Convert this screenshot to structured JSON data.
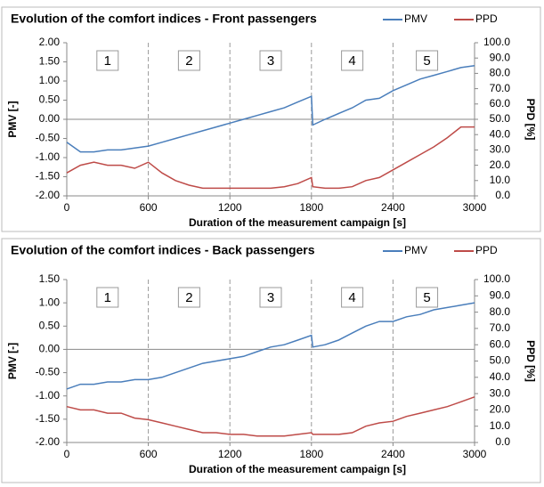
{
  "chart_data": [
    {
      "type": "line",
      "title": "Evolution of the comfort indices - Front passengers",
      "xlabel": "Duration of the measurement campaign  [s]",
      "ylabel": "PMV [-]",
      "y2label": "PPD [%]",
      "x": [
        0,
        100,
        200,
        300,
        400,
        500,
        600,
        700,
        800,
        900,
        1000,
        1100,
        1200,
        1300,
        1400,
        1500,
        1600,
        1700,
        1800,
        1810,
        1900,
        2000,
        2100,
        2200,
        2300,
        2400,
        2500,
        2600,
        2700,
        2800,
        2900,
        3000
      ],
      "series": [
        {
          "name": "PMV",
          "color": "#4a7ebb",
          "values": [
            -0.6,
            -0.85,
            -0.85,
            -0.8,
            -0.8,
            -0.75,
            -0.7,
            -0.6,
            -0.5,
            -0.4,
            -0.3,
            -0.2,
            -0.1,
            0.0,
            0.1,
            0.2,
            0.3,
            0.45,
            0.6,
            -0.15,
            0.0,
            0.15,
            0.3,
            0.5,
            0.55,
            0.75,
            0.9,
            1.05,
            1.15,
            1.25,
            1.35,
            1.4
          ]
        },
        {
          "name": "PPD",
          "color": "#be4b48",
          "axis": "y2",
          "values": [
            15,
            20,
            22,
            20,
            20,
            18,
            22,
            15,
            10,
            7,
            5,
            5,
            5,
            5,
            5,
            5,
            6,
            8,
            12,
            6,
            5,
            5,
            6,
            10,
            12,
            17,
            22,
            27,
            32,
            38,
            45,
            45
          ]
        }
      ],
      "xlim": [
        0,
        3000
      ],
      "xticks": [
        0,
        600,
        1200,
        1800,
        2400,
        3000
      ],
      "ylim": [
        -2,
        2
      ],
      "yticks": [
        {
          "value": 2,
          "label": "2.00"
        },
        {
          "value": 1.5,
          "label": "1.50"
        },
        {
          "value": 1,
          "label": "1.00"
        },
        {
          "value": 0.5,
          "label": "0.50"
        },
        {
          "value": 0,
          "label": "0.00"
        },
        {
          "value": -0.5,
          "label": "-0.50"
        },
        {
          "value": -1,
          "label": "-1.00"
        },
        {
          "value": -1.5,
          "label": "-1.50"
        },
        {
          "value": -2,
          "label": "-2.00"
        }
      ],
      "y2lim": [
        0,
        100
      ],
      "y2ticks": [
        {
          "value": 100,
          "label": "100.0"
        },
        {
          "value": 90,
          "label": "90.0"
        },
        {
          "value": 80,
          "label": "80.0"
        },
        {
          "value": 70,
          "label": "70.0"
        },
        {
          "value": 60,
          "label": "60.0"
        },
        {
          "value": 50,
          "label": "50.0"
        },
        {
          "value": 40,
          "label": "40.0"
        },
        {
          "value": 30,
          "label": "30.0"
        },
        {
          "value": 20,
          "label": "20.0"
        },
        {
          "value": 10,
          "label": "10.0"
        },
        {
          "value": 0,
          "label": "0.0"
        }
      ],
      "phase_lines": [
        600,
        1200,
        1800,
        2400
      ],
      "annotations": [
        {
          "text": "1",
          "x": 300
        },
        {
          "text": "2",
          "x": 900
        },
        {
          "text": "3",
          "x": 1500
        },
        {
          "text": "4",
          "x": 2100
        },
        {
          "text": "5",
          "x": 2650
        }
      ]
    },
    {
      "type": "line",
      "title": "Evolution of the comfort indices - Back passengers",
      "xlabel": "Duration of the measurement campaign  [s]",
      "ylabel": "PMV [-]",
      "y2label": "PPD [%]",
      "x": [
        0,
        100,
        200,
        300,
        400,
        500,
        600,
        700,
        800,
        900,
        1000,
        1100,
        1200,
        1300,
        1400,
        1500,
        1600,
        1700,
        1800,
        1810,
        1900,
        2000,
        2100,
        2200,
        2300,
        2400,
        2500,
        2600,
        2700,
        2800,
        2900,
        3000
      ],
      "series": [
        {
          "name": "PMV",
          "color": "#4a7ebb",
          "values": [
            -0.85,
            -0.75,
            -0.75,
            -0.7,
            -0.7,
            -0.65,
            -0.65,
            -0.6,
            -0.5,
            -0.4,
            -0.3,
            -0.25,
            -0.2,
            -0.15,
            -0.05,
            0.05,
            0.1,
            0.2,
            0.3,
            0.05,
            0.1,
            0.2,
            0.35,
            0.5,
            0.6,
            0.6,
            0.7,
            0.75,
            0.85,
            0.9,
            0.95,
            1.0
          ]
        },
        {
          "name": "PPD",
          "color": "#be4b48",
          "axis": "y2",
          "values": [
            22,
            20,
            20,
            18,
            18,
            15,
            14,
            12,
            10,
            8,
            6,
            6,
            5,
            5,
            4,
            4,
            4,
            5,
            6,
            5,
            5,
            5,
            6,
            10,
            12,
            13,
            16,
            18,
            20,
            22,
            25,
            28
          ]
        }
      ],
      "xlim": [
        0,
        3000
      ],
      "xticks": [
        0,
        600,
        1200,
        1800,
        2400,
        3000
      ],
      "ylim": [
        -2,
        1.5
      ],
      "yticks": [
        {
          "value": 1.5,
          "label": "1.50"
        },
        {
          "value": 1,
          "label": "1.00"
        },
        {
          "value": 0.5,
          "label": "0.50"
        },
        {
          "value": 0,
          "label": "0.00"
        },
        {
          "value": -0.5,
          "label": "-0.50"
        },
        {
          "value": -1,
          "label": "-1.00"
        },
        {
          "value": -1.5,
          "label": "-1.50"
        },
        {
          "value": -2,
          "label": "-2.00"
        }
      ],
      "y2lim": [
        0,
        100
      ],
      "y2ticks": [
        {
          "value": 100,
          "label": "100.0"
        },
        {
          "value": 90,
          "label": "90.0"
        },
        {
          "value": 80,
          "label": "80.0"
        },
        {
          "value": 70,
          "label": "70.0"
        },
        {
          "value": 60,
          "label": "60.0"
        },
        {
          "value": 50,
          "label": "50.0"
        },
        {
          "value": 40,
          "label": "40.0"
        },
        {
          "value": 30,
          "label": "30.0"
        },
        {
          "value": 20,
          "label": "20.0"
        },
        {
          "value": 10,
          "label": "10.0"
        },
        {
          "value": 0,
          "label": "0.0"
        }
      ],
      "phase_lines": [
        600,
        1200,
        1800,
        2400
      ],
      "annotations": [
        {
          "text": "1",
          "x": 300
        },
        {
          "text": "2",
          "x": 900
        },
        {
          "text": "3",
          "x": 1500
        },
        {
          "text": "4",
          "x": 2100
        },
        {
          "text": "5",
          "x": 2650
        }
      ]
    }
  ]
}
